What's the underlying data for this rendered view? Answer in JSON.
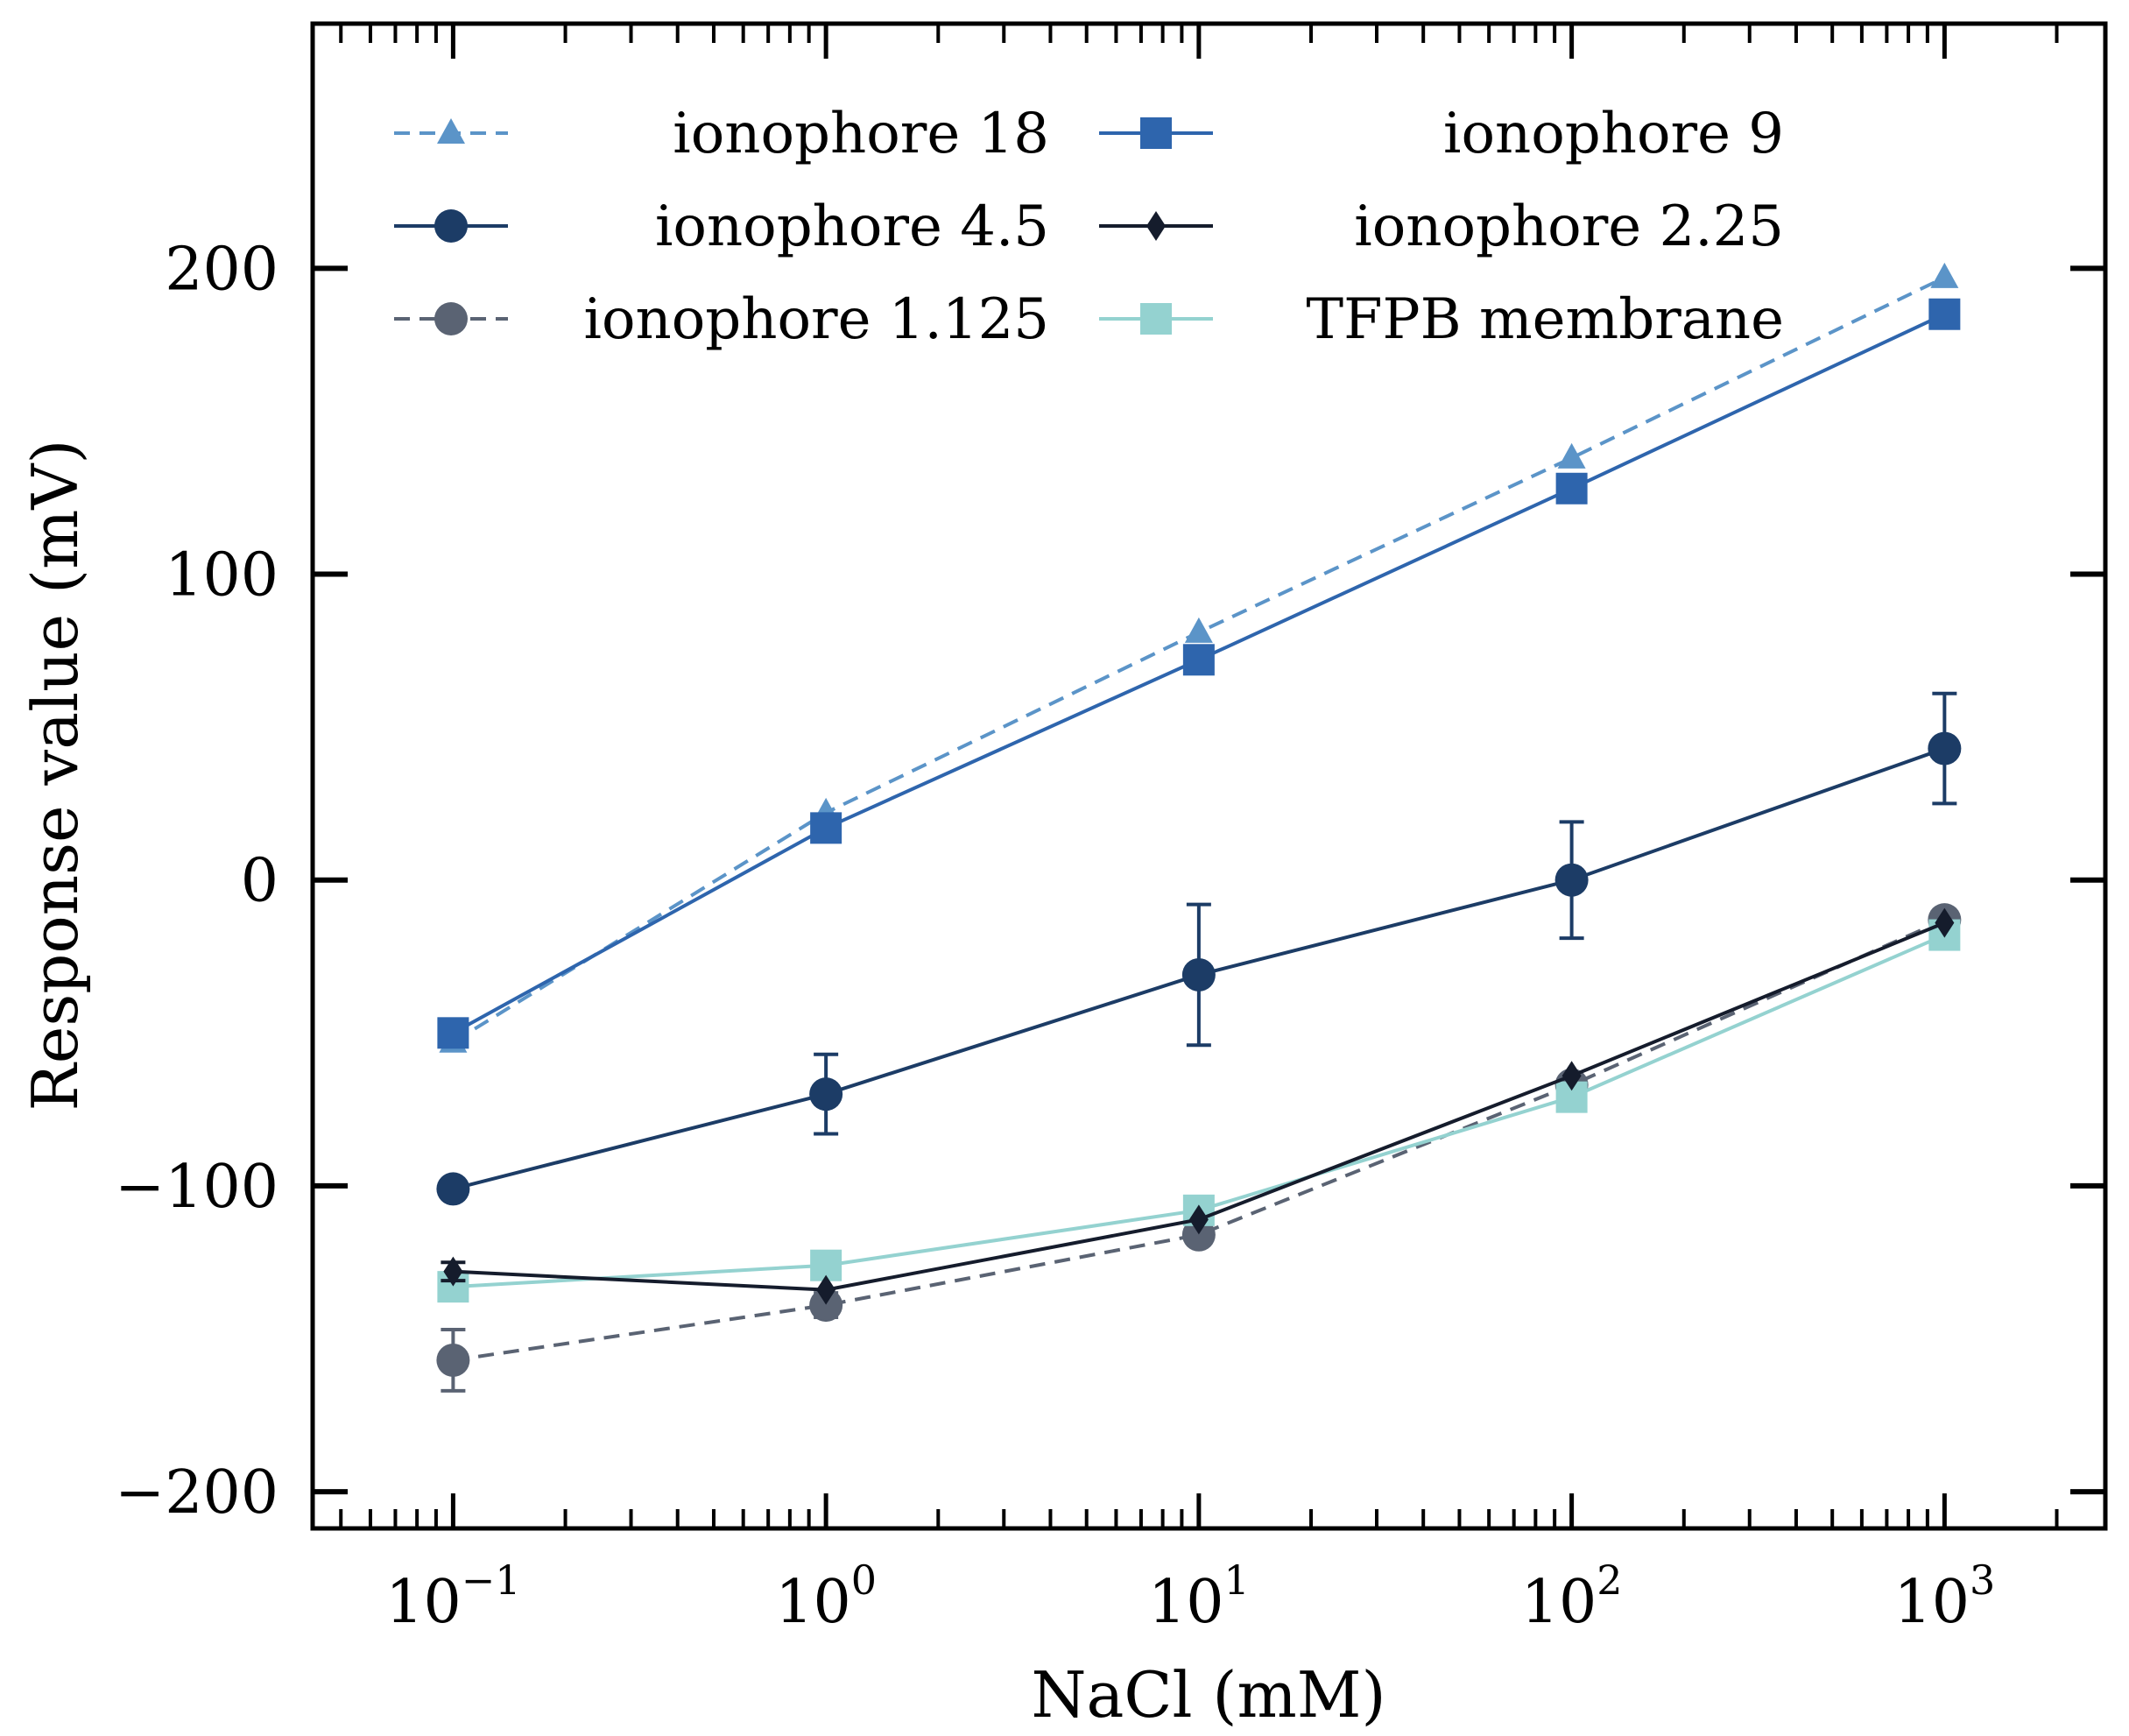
{
  "chart_data": {
    "type": "line",
    "xscale": "log",
    "x": [
      0.1,
      1,
      10,
      100,
      1000
    ],
    "xlim": [
      0.042,
      2700
    ],
    "ylim": [
      -212,
      280
    ],
    "xlabel": "NaCl (mM)",
    "ylabel": "Response value (mV)",
    "xticks": [
      {
        "value": 0.1,
        "base": "10",
        "exp": "−1"
      },
      {
        "value": 1,
        "base": "10",
        "exp": "0"
      },
      {
        "value": 10,
        "base": "10",
        "exp": "1"
      },
      {
        "value": 100,
        "base": "10",
        "exp": "2"
      },
      {
        "value": 1000,
        "base": "10",
        "exp": "3"
      }
    ],
    "yticks": [
      {
        "value": 200,
        "label": "200"
      },
      {
        "value": 100,
        "label": "100"
      },
      {
        "value": 0,
        "label": "0"
      },
      {
        "value": -100,
        "label": "−100"
      },
      {
        "value": -200,
        "label": "−200"
      }
    ],
    "legend_position": "top-left",
    "series": [
      {
        "id": "ionophore-18",
        "name": "ionophore 18",
        "color": "#5b94c8",
        "dash": true,
        "marker": "triangle",
        "values": [
          -53,
          22,
          81,
          138,
          197
        ],
        "errors": [
          0,
          0,
          0,
          0,
          0
        ]
      },
      {
        "id": "ionophore-9",
        "name": "ionophore 9",
        "color": "#2e65ad",
        "dash": false,
        "marker": "square",
        "values": [
          -50,
          17,
          72,
          128,
          185
        ],
        "errors": [
          0,
          0,
          0,
          0,
          0
        ]
      },
      {
        "id": "ionophore-4-5",
        "name": "ionophore 4.5",
        "color": "#1c3c66",
        "dash": false,
        "marker": "circle",
        "values": [
          -101,
          -70,
          -31,
          0,
          43
        ],
        "errors": [
          3,
          13,
          23,
          19,
          18
        ]
      },
      {
        "id": "ionophore-2-25",
        "name": "ionophore 2.25",
        "color": "#151c2c",
        "dash": false,
        "marker": "diamond",
        "values": [
          -128,
          -134,
          -111,
          -64,
          -14
        ],
        "errors": [
          3,
          0,
          0,
          0,
          0
        ]
      },
      {
        "id": "ionophore-1-125",
        "name": "ionophore 1.125",
        "color": "#5a6373",
        "dash": true,
        "marker": "circle",
        "values": [
          -157,
          -139,
          -116,
          -67,
          -13
        ],
        "errors": [
          10,
          4,
          3,
          0,
          0
        ]
      },
      {
        "id": "tfpb-membrane",
        "name": "TFPB membrane",
        "color": "#94d2d0",
        "dash": false,
        "marker": "square",
        "values": [
          -133,
          -126,
          -108,
          -71,
          -18
        ],
        "errors": [
          0,
          0,
          0,
          0,
          0
        ]
      }
    ]
  }
}
